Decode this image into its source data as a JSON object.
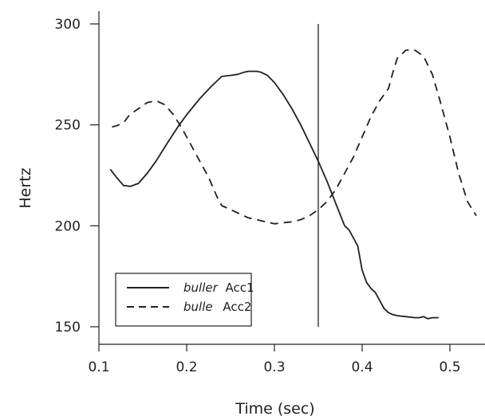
{
  "chart_data": {
    "type": "line",
    "title": "",
    "xlabel": "Time (sec)",
    "ylabel": "Hertz",
    "xlim": [
      0.1,
      0.53
    ],
    "ylim": [
      150,
      300
    ],
    "xticks": [
      0.1,
      0.2,
      0.3,
      0.4,
      0.5
    ],
    "xtick_labels": [
      "0.1",
      "0.2",
      "0.3",
      "0.4",
      "0.5"
    ],
    "yticks": [
      150,
      200,
      250,
      300
    ],
    "ytick_labels": [
      "150",
      "200",
      "250",
      "300"
    ],
    "grid": false,
    "legend_position": "bottom-left",
    "vertical_marker_x": 0.35,
    "series": [
      {
        "name": "buller",
        "name_suffix": "Acc1",
        "style": "solid",
        "color": "#231f20",
        "x": [
          0.113,
          0.12,
          0.128,
          0.136,
          0.145,
          0.155,
          0.165,
          0.178,
          0.19,
          0.2,
          0.215,
          0.228,
          0.24,
          0.25,
          0.258,
          0.265,
          0.27,
          0.28,
          0.285,
          0.292,
          0.3,
          0.31,
          0.32,
          0.33,
          0.34,
          0.35,
          0.36,
          0.37,
          0.38,
          0.385,
          0.39,
          0.395,
          0.4,
          0.405,
          0.41,
          0.415,
          0.42,
          0.425,
          0.43,
          0.435,
          0.44,
          0.45,
          0.46,
          0.465,
          0.47,
          0.475,
          0.48,
          0.487
        ],
        "y": [
          228,
          224,
          220,
          219.5,
          221,
          226,
          232,
          241,
          249,
          255,
          263,
          269,
          274,
          274.5,
          275,
          276,
          276.5,
          276.5,
          276,
          274.5,
          271,
          265,
          258,
          250,
          241,
          232,
          222,
          211,
          200,
          198,
          194,
          190,
          178,
          172,
          169,
          167,
          163,
          159,
          157,
          156,
          155.5,
          155,
          154.5,
          154.5,
          155,
          154,
          154.5,
          154.5
        ]
      },
      {
        "name": "bulle",
        "name_suffix": "Acc2",
        "style": "dashed",
        "color": "#231f20",
        "x": [
          0.115,
          0.12,
          0.128,
          0.135,
          0.145,
          0.155,
          0.165,
          0.175,
          0.185,
          0.195,
          0.205,
          0.215,
          0.225,
          0.235,
          0.24,
          0.245,
          0.25,
          0.26,
          0.27,
          0.28,
          0.29,
          0.3,
          0.31,
          0.32,
          0.33,
          0.34,
          0.35,
          0.36,
          0.37,
          0.38,
          0.39,
          0.4,
          0.41,
          0.42,
          0.43,
          0.435,
          0.44,
          0.45,
          0.46,
          0.47,
          0.48,
          0.49,
          0.5,
          0.51,
          0.52,
          0.53
        ],
        "y": [
          249,
          249.5,
          251,
          255,
          258,
          261,
          262,
          260,
          255,
          248,
          240,
          232,
          224,
          214,
          210,
          209,
          208,
          206,
          204,
          203,
          202,
          201,
          201.5,
          202,
          203,
          205,
          208,
          212,
          218,
          226,
          234,
          244,
          254,
          262,
          268,
          276,
          283,
          287,
          287,
          284,
          275,
          260,
          244,
          226,
          212,
          205
        ]
      }
    ]
  }
}
